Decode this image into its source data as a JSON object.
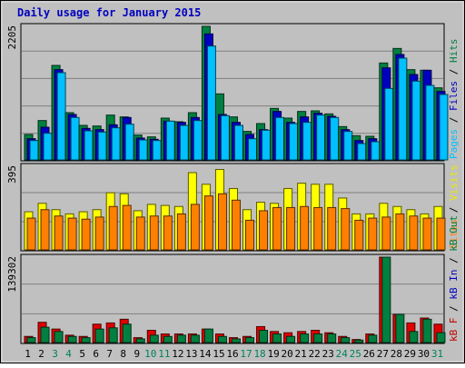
{
  "chart_data": {
    "type": "bar",
    "title": "Daily usage for January 2015",
    "days": [
      "1",
      "2",
      "3",
      "4",
      "5",
      "6",
      "7",
      "8",
      "9",
      "10",
      "11",
      "12",
      "13",
      "14",
      "15",
      "16",
      "17",
      "18",
      "19",
      "20",
      "21",
      "22",
      "23",
      "24",
      "25",
      "26",
      "27",
      "28",
      "29",
      "30",
      "31"
    ],
    "weekend_days": [
      "3",
      "4",
      "10",
      "11",
      "17",
      "18",
      "24",
      "25",
      "31"
    ],
    "panels": [
      {
        "id": "hits-files-pages",
        "ymax_label": "2205",
        "ymax": 2205,
        "right_label_parts": [
          {
            "text": "Pages",
            "color": "#00c0ff"
          },
          {
            "text": " / ",
            "color": "#000000"
          },
          {
            "text": "Files",
            "color": "#0000c0"
          },
          {
            "text": " / ",
            "color": "#000000"
          },
          {
            "text": "Hits",
            "color": "#008040"
          }
        ],
        "series": [
          {
            "name": "Hits",
            "color": "#008040",
            "values": [
              420,
              650,
              1560,
              780,
              570,
              560,
              740,
              710,
              410,
              380,
              690,
              630,
              780,
              2205,
              1090,
              710,
              470,
              600,
              850,
              690,
              800,
              810,
              760,
              550,
              400,
              390,
              1600,
              1840,
              1490,
              1480,
              1190
            ]
          },
          {
            "name": "Files",
            "color": "#0000c0",
            "values": [
              350,
              540,
              1490,
              750,
              520,
              500,
              580,
              700,
              360,
              340,
              640,
              620,
              700,
              2080,
              750,
              620,
              420,
              500,
              800,
              620,
              710,
              770,
              720,
              500,
              320,
              350,
              1520,
              1740,
              1410,
              1480,
              1130
            ]
          },
          {
            "name": "Pages",
            "color": "#00c0ff",
            "values": [
              320,
              440,
              1440,
              700,
              480,
              460,
              530,
              590,
              330,
              320,
              640,
              570,
              650,
              1880,
              730,
              570,
              350,
              490,
              700,
              600,
              620,
              740,
              700,
              470,
              270,
              300,
              1180,
              1680,
              1300,
              1230,
              1080
            ]
          }
        ]
      },
      {
        "id": "visits-sites",
        "ymax_label": "395",
        "ymax": 395,
        "right_label_parts": [
          {
            "text": "Sites",
            "color": "#ff8000"
          },
          {
            "text": " / ",
            "color": "#000000"
          },
          {
            "text": "Visits",
            "color": "#e8e800"
          }
        ],
        "series": [
          {
            "name": "Visits",
            "color": "#ffff00",
            "values": [
              180,
              220,
              190,
              170,
              180,
              190,
              270,
              265,
              185,
              215,
              210,
              205,
              365,
              310,
              380,
              290,
              190,
              225,
              220,
              290,
              315,
              310,
              310,
              245,
              170,
              170,
              220,
              205,
              190,
              170,
              205
            ]
          },
          {
            "name": "Sites",
            "color": "#ff8000",
            "values": [
              150,
              190,
              160,
              150,
              145,
              155,
              205,
              210,
              155,
              160,
              160,
              170,
              215,
              255,
              265,
              235,
              140,
              185,
              200,
              200,
              205,
              200,
              200,
              195,
              140,
              150,
              155,
              170,
              160,
              150,
              150
            ]
          }
        ]
      },
      {
        "id": "kbytes",
        "ymax_label": "139302",
        "ymax": 139302,
        "right_label_parts": [
          {
            "text": "kB F",
            "color": "#c00000"
          },
          {
            "text": " / ",
            "color": "#000000"
          },
          {
            "text": "kB In",
            "color": "#0000c0"
          },
          {
            "text": " / ",
            "color": "#000000"
          },
          {
            "text": "kB Out",
            "color": "#008040"
          }
        ],
        "series": [
          {
            "name": "kB F",
            "color": "#e00000",
            "values": [
              10000,
              33000,
              22000,
              12000,
              10000,
              30000,
              32000,
              38000,
              8000,
              20000,
              14000,
              14000,
              14000,
              22000,
              14000,
              8000,
              10000,
              26000,
              18000,
              16000,
              18000,
              20000,
              16000,
              10000,
              5000,
              14000,
              139302,
              46000,
              32000,
              40000,
              30000
            ]
          },
          {
            "name": "kB Out",
            "color": "#008040",
            "values": [
              8000,
              25000,
              18000,
              10000,
              8000,
              22000,
              24000,
              30000,
              6000,
              12000,
              10000,
              12000,
              12000,
              22000,
              10000,
              6000,
              8000,
              20000,
              14000,
              10000,
              14000,
              14000,
              14000,
              8000,
              4000,
              12000,
              139302,
              46000,
              18000,
              38000,
              16000
            ]
          }
        ]
      }
    ]
  }
}
